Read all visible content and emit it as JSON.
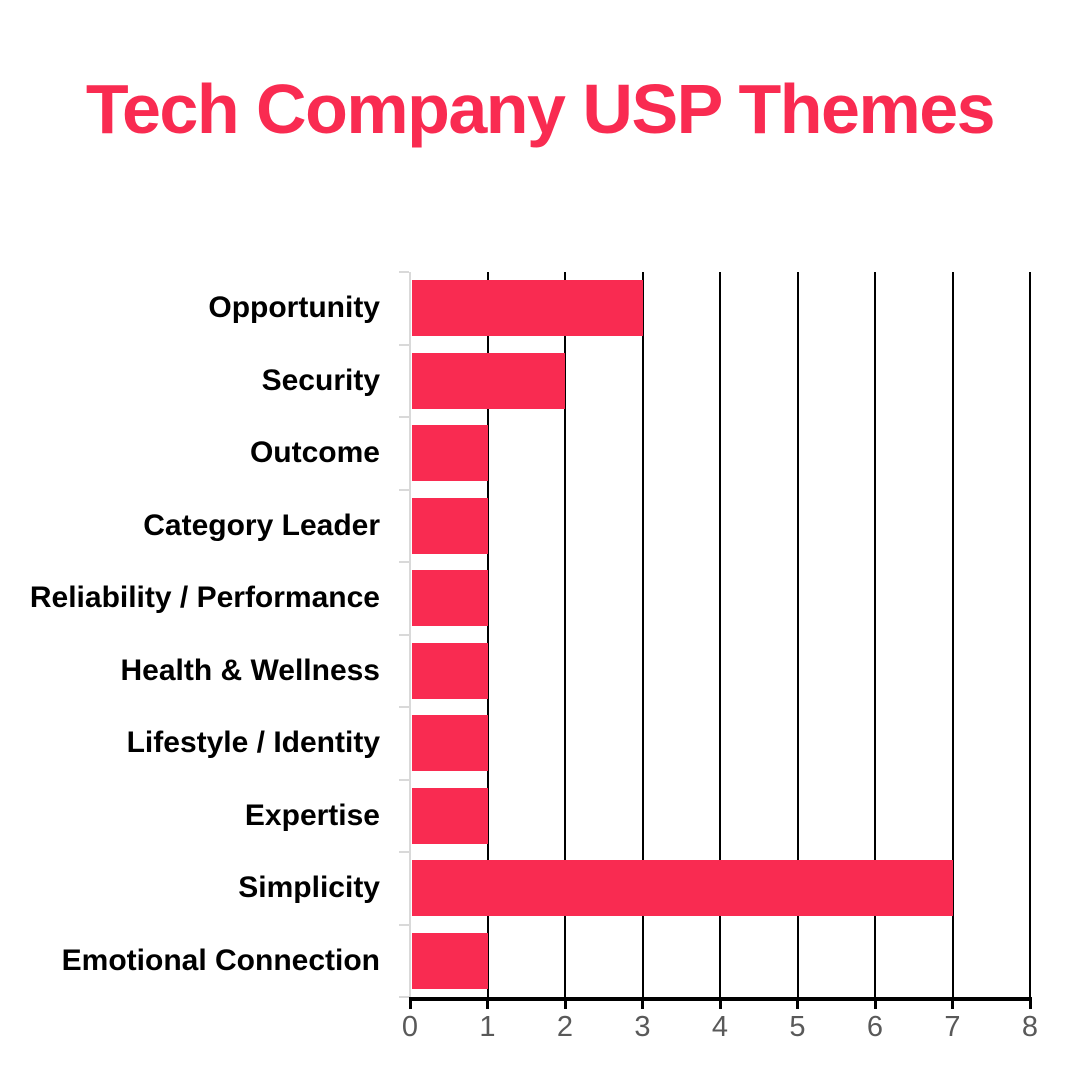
{
  "title": "Tech Company USP Themes",
  "colors": {
    "title": "#F92B51",
    "bar": "#F92B51",
    "gridline": "#000000",
    "x_axis": "#000000",
    "y_axis": "#D9D9D9",
    "x_tick_label": "#595959",
    "category_label": "#000000",
    "background": "#FFFFFF"
  },
  "chart_data": {
    "type": "bar",
    "orientation": "horizontal",
    "title": "Tech Company USP Themes",
    "categories": [
      "Opportunity",
      "Security",
      "Outcome",
      "Category Leader",
      "Reliability / Performance",
      "Health & Wellness",
      "Lifestyle / Identity",
      "Expertise",
      "Simplicity",
      "Emotional Connection"
    ],
    "values": [
      3,
      2,
      1,
      1,
      1,
      1,
      1,
      1,
      7,
      1
    ],
    "xlabel": "",
    "ylabel": "",
    "xlim": [
      0,
      8
    ],
    "xticks": [
      0,
      1,
      2,
      3,
      4,
      5,
      6,
      7,
      8
    ],
    "grid": true,
    "legend": false
  }
}
